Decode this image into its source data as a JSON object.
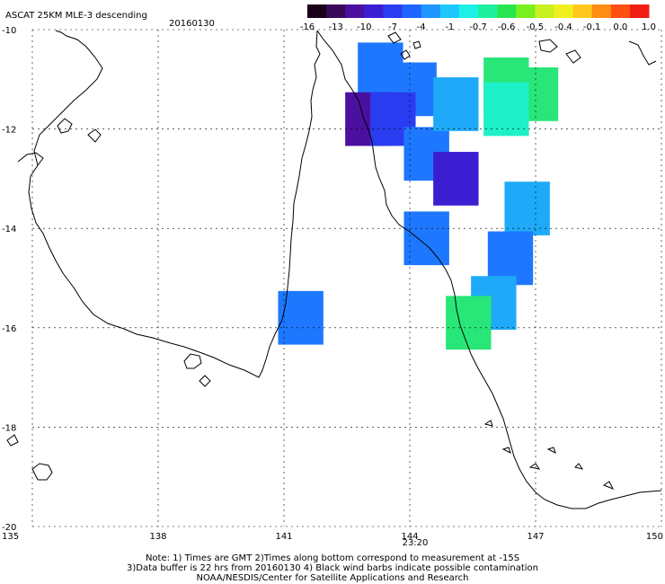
{
  "header": {
    "title": "ASCAT 25KM MLE-3 descending",
    "date": "20160130"
  },
  "colorbar": {
    "tick_labels": [
      "-16",
      "-13",
      "-10",
      "-7",
      "-4",
      "-1",
      "-0.7",
      "-0.6",
      "-0.5",
      "-0.4",
      "-0.1",
      "0.0",
      "1.0"
    ],
    "colors": [
      "#1a001a",
      "#3a0a5a",
      "#4b10a0",
      "#3c1ed2",
      "#2a3cf0",
      "#1e64ff",
      "#1e96ff",
      "#1ec8ff",
      "#1ef0e6",
      "#1ef0a0",
      "#28e650",
      "#78f01e",
      "#c8f01e",
      "#f0f01e",
      "#ffc81e",
      "#ff8c14",
      "#ff5014",
      "#f01e14"
    ]
  },
  "map": {
    "lat_labels": [
      "-10",
      "-12",
      "-14",
      "-16",
      "-18",
      "-20"
    ],
    "lon_labels": [
      "135",
      "138",
      "141",
      "144",
      "147",
      "150"
    ],
    "time_label": "23:20",
    "time_color": "#cc2200"
  },
  "footer": {
    "line1": "Note: 1) Times are GMT 2)Times along bottom correspond to measurement at -15S",
    "line2": "3)Data buffer is 22 hrs from 20160130 4) Black wind barbs indicate possible contamination",
    "line3": "NOAA/NESDIS/Center for Satellite Applications and Research"
  },
  "data_cells": [
    {
      "lon": 143.3,
      "lat": -10.8,
      "value": -4
    },
    {
      "lon": 144.1,
      "lat": -11.2,
      "value": -4
    },
    {
      "lon": 143.0,
      "lat": -11.8,
      "value": -13
    },
    {
      "lon": 143.6,
      "lat": -11.8,
      "value": -7
    },
    {
      "lon": 144.4,
      "lat": -12.5,
      "value": -4
    },
    {
      "lon": 145.1,
      "lat": -11.5,
      "value": -1
    },
    {
      "lon": 145.1,
      "lat": -13.0,
      "value": -10
    },
    {
      "lon": 144.4,
      "lat": -14.2,
      "value": -4
    },
    {
      "lon": 146.3,
      "lat": -11.1,
      "value": -0.5
    },
    {
      "lon": 147.0,
      "lat": -11.3,
      "value": -0.5
    },
    {
      "lon": 146.3,
      "lat": -11.6,
      "value": -0.6
    },
    {
      "lon": 146.8,
      "lat": -13.6,
      "value": -1
    },
    {
      "lon": 146.4,
      "lat": -14.6,
      "value": -4
    },
    {
      "lon": 146.0,
      "lat": -15.5,
      "value": -1
    },
    {
      "lon": 145.4,
      "lat": -15.9,
      "value": -0.5
    },
    {
      "lon": 141.4,
      "lat": -15.8,
      "value": -4
    }
  ]
}
